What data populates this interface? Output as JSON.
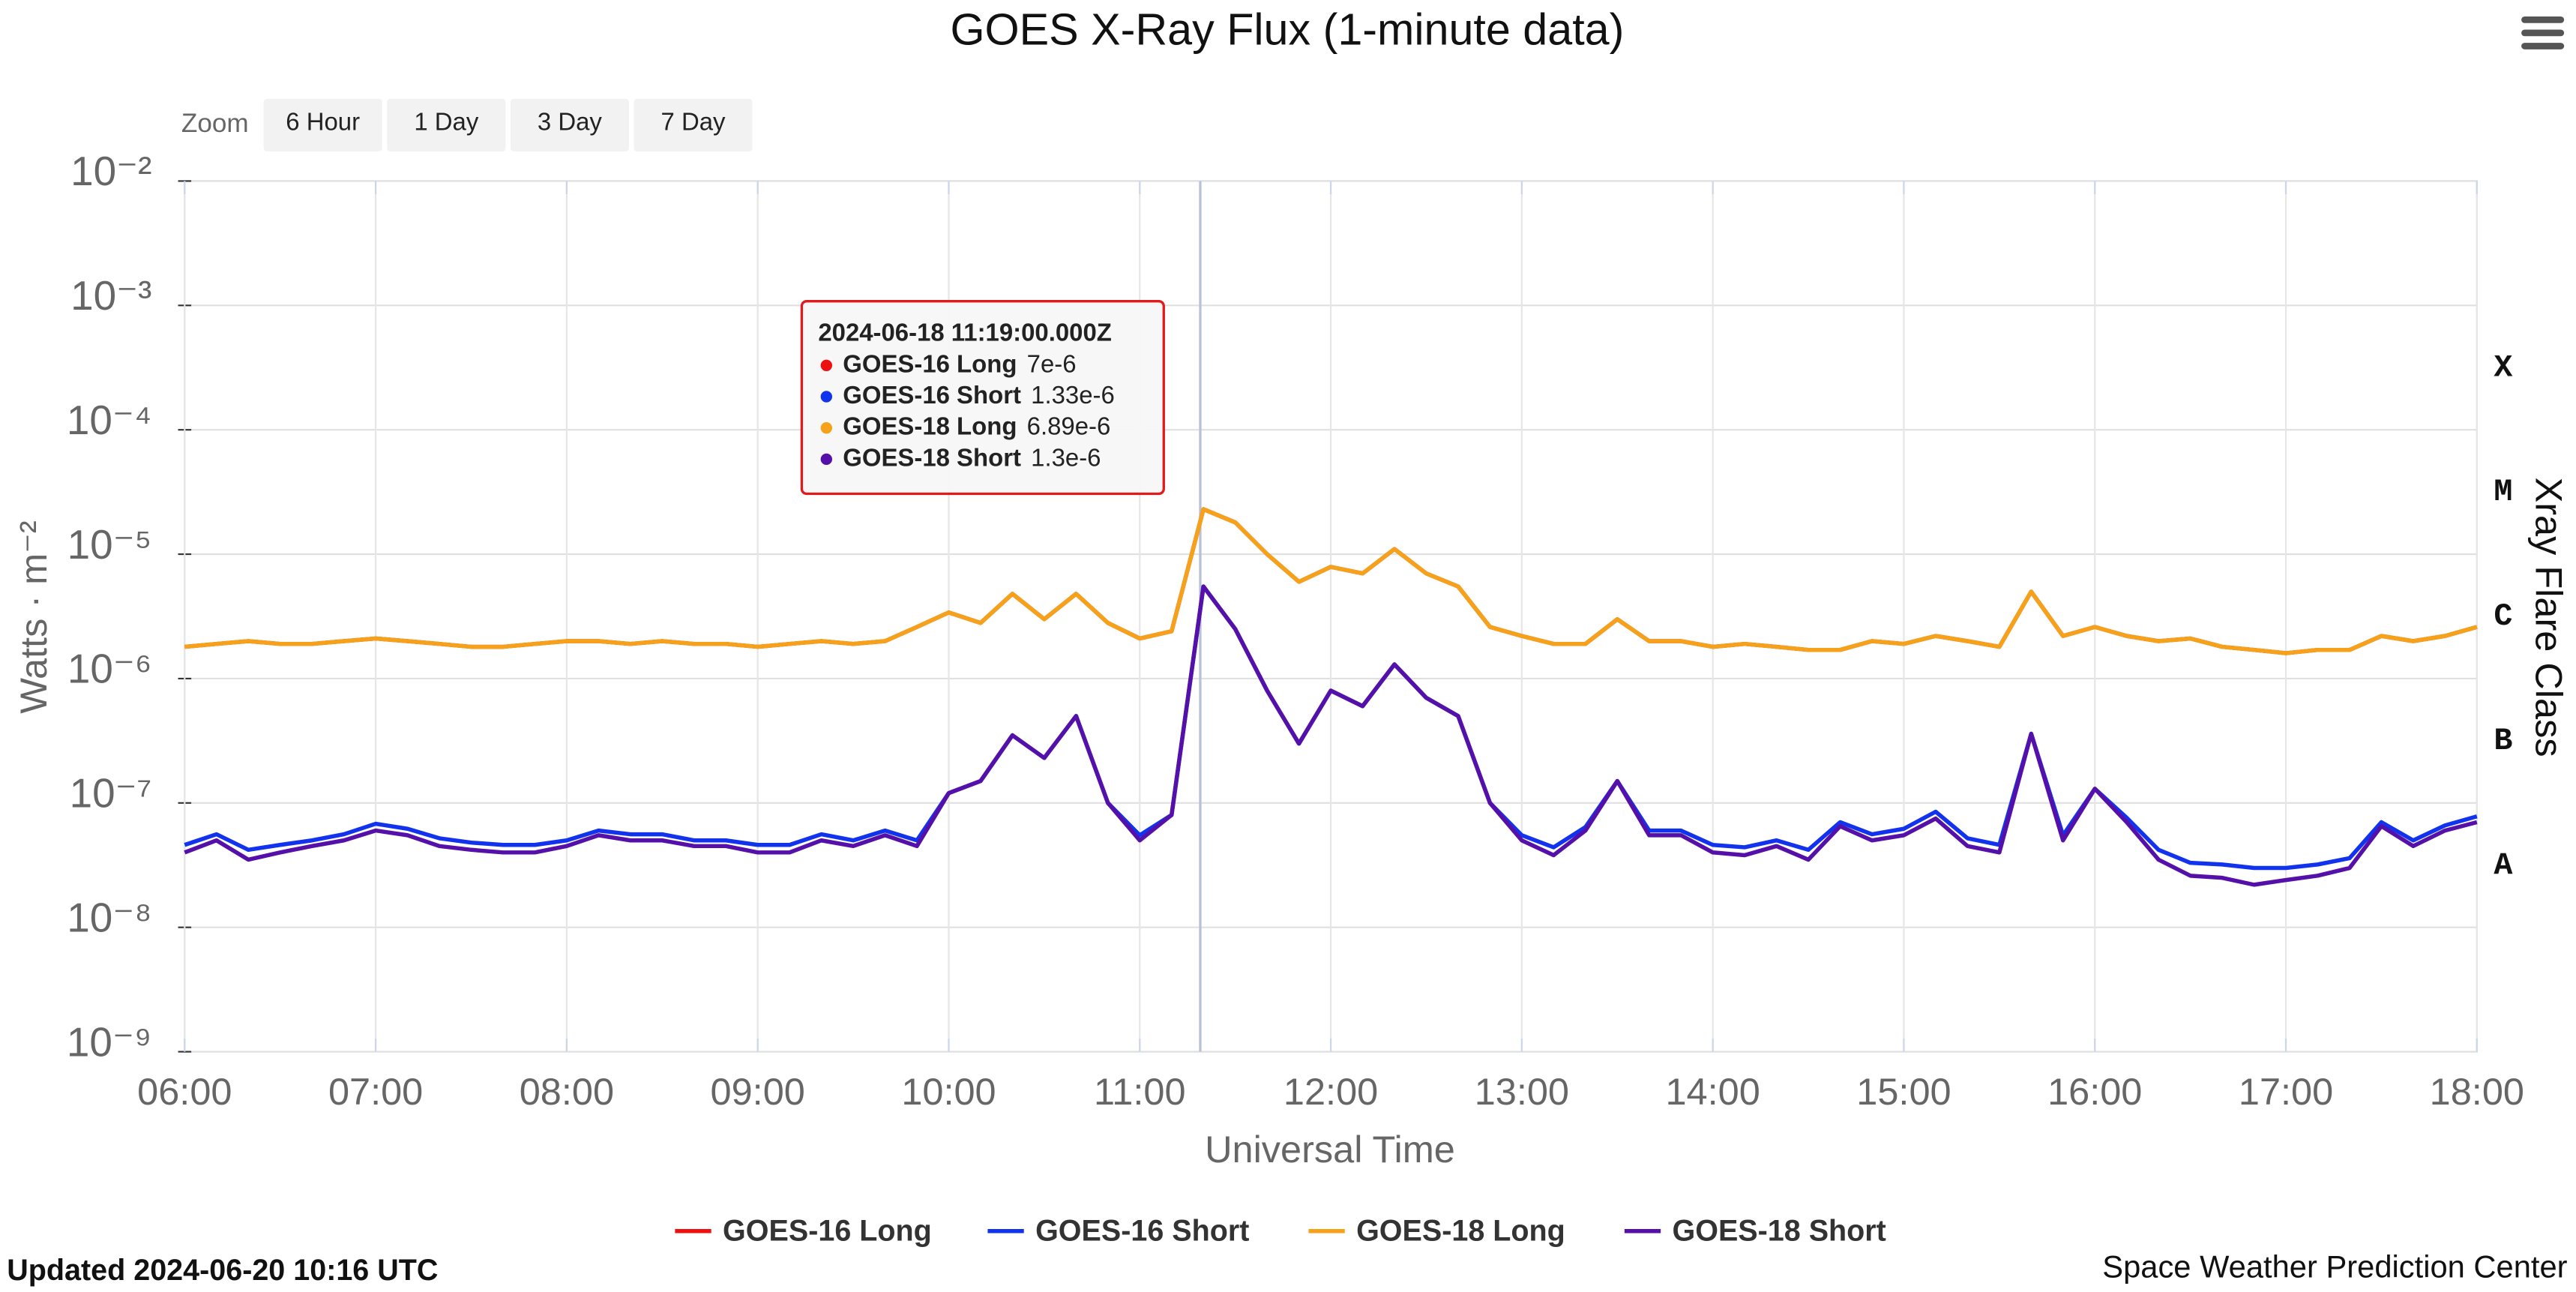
{
  "chart_data": {
    "type": "line",
    "title": "GOES X-Ray Flux (1-minute data)",
    "x_label": "Universal Time",
    "y_label": "Watts · m⁻²",
    "y2_label": "Xray Flare Class",
    "log_scale": true,
    "grid": true,
    "zoom": {
      "label": "Zoom",
      "buttons": [
        "6 Hour",
        "1 Day",
        "3 Day",
        "7 Day"
      ]
    },
    "updated": "Updated 2024-06-20 10:16 UTC",
    "credit": "Space Weather Prediction Center",
    "ylim": [
      1e-09,
      0.01
    ],
    "yticks": [
      {
        "value": 1e-09,
        "label": "10⁻⁹"
      },
      {
        "value": 1e-08,
        "label": "10⁻⁸"
      },
      {
        "value": 1e-07,
        "label": "10⁻⁷"
      },
      {
        "value": 1e-06,
        "label": "10⁻⁶"
      },
      {
        "value": 1e-05,
        "label": "10⁻⁵"
      },
      {
        "value": 0.0001,
        "label": "10⁻⁴"
      },
      {
        "value": 0.001,
        "label": "10⁻³"
      },
      {
        "value": 0.01,
        "label": "10⁻²"
      }
    ],
    "flare_classes": {
      "labels": [
        "A",
        "B",
        "C",
        "M",
        "X"
      ],
      "values": [
        1e-08,
        1e-07,
        1e-06,
        1e-05,
        0.0001
      ]
    },
    "xlim": [
      "06:00",
      "18:00"
    ],
    "xticks": [
      "06:00",
      "07:00",
      "08:00",
      "09:00",
      "10:00",
      "11:00",
      "12:00",
      "13:00",
      "14:00",
      "15:00",
      "16:00",
      "17:00",
      "18:00"
    ],
    "x": [
      "06:00",
      "06:10",
      "06:20",
      "06:30",
      "06:40",
      "06:50",
      "07:00",
      "07:10",
      "07:20",
      "07:30",
      "07:40",
      "07:50",
      "08:00",
      "08:10",
      "08:20",
      "08:30",
      "08:40",
      "08:50",
      "09:00",
      "09:10",
      "09:20",
      "09:30",
      "09:40",
      "09:50",
      "10:00",
      "10:10",
      "10:20",
      "10:30",
      "10:40",
      "10:50",
      "11:00",
      "11:10",
      "11:20",
      "11:30",
      "11:40",
      "11:50",
      "12:00",
      "12:10",
      "12:20",
      "12:30",
      "12:40",
      "12:50",
      "13:00",
      "13:10",
      "13:20",
      "13:30",
      "13:40",
      "13:50",
      "14:00",
      "14:10",
      "14:20",
      "14:30",
      "14:40",
      "14:50",
      "15:00",
      "15:10",
      "15:20",
      "15:30",
      "15:40",
      "15:50",
      "16:00",
      "16:10",
      "16:20",
      "16:30",
      "16:40",
      "16:50",
      "17:00",
      "17:10",
      "17:20",
      "17:30",
      "17:40",
      "17:50",
      "18:00"
    ],
    "series": [
      {
        "name": "GOES-16 Long",
        "color": "#ee1111",
        "values": [
          1.8e-06,
          1.9e-06,
          2e-06,
          1.9e-06,
          1.9e-06,
          2e-06,
          2.1e-06,
          2e-06,
          1.9e-06,
          1.8e-06,
          1.8e-06,
          1.9e-06,
          2e-06,
          2e-06,
          1.9e-06,
          2e-06,
          1.9e-06,
          1.9e-06,
          1.8e-06,
          1.9e-06,
          2e-06,
          1.9e-06,
          2e-06,
          2.6e-06,
          3.4e-06,
          2.8e-06,
          4.8e-06,
          3e-06,
          4.8e-06,
          2.8e-06,
          2.1e-06,
          2.4e-06,
          2.3e-05,
          1.8e-05,
          1e-05,
          6e-06,
          7.9e-06,
          7e-06,
          1.1e-05,
          7e-06,
          5.5e-06,
          2.6e-06,
          2.2e-06,
          1.9e-06,
          1.9e-06,
          3e-06,
          2e-06,
          2e-06,
          1.8e-06,
          1.9e-06,
          1.8e-06,
          1.7e-06,
          1.7e-06,
          2e-06,
          1.9e-06,
          2.2e-06,
          2e-06,
          1.8e-06,
          5e-06,
          2.2e-06,
          2.6e-06,
          2.2e-06,
          2e-06,
          2.1e-06,
          1.8e-06,
          1.7e-06,
          1.6e-06,
          1.7e-06,
          1.7e-06,
          2.2e-06,
          2e-06,
          2.2e-06,
          2.6e-06
        ]
      },
      {
        "name": "GOES-16 Short",
        "color": "#1133ee",
        "values": [
          4.6e-08,
          5.6e-08,
          4.2e-08,
          4.6e-08,
          5e-08,
          5.6e-08,
          6.8e-08,
          6.2e-08,
          5.2e-08,
          4.8e-08,
          4.6e-08,
          4.6e-08,
          5e-08,
          6e-08,
          5.6e-08,
          5.6e-08,
          5e-08,
          5e-08,
          4.6e-08,
          4.6e-08,
          5.6e-08,
          5e-08,
          6e-08,
          5e-08,
          1.2e-07,
          1.5e-07,
          3.5e-07,
          2.3e-07,
          5e-07,
          1e-07,
          5.5e-08,
          8e-08,
          5.5e-06,
          2.5e-06,
          8e-07,
          3e-07,
          8e-07,
          6e-07,
          1.3e-06,
          7e-07,
          5e-07,
          1e-07,
          5.5e-08,
          4.4e-08,
          6.4e-08,
          1.5e-07,
          6e-08,
          6e-08,
          4.6e-08,
          4.4e-08,
          5e-08,
          4.2e-08,
          7e-08,
          5.6e-08,
          6.2e-08,
          8.5e-08,
          5.2e-08,
          4.6e-08,
          3.6e-07,
          5.5e-08,
          1.3e-07,
          7.6e-08,
          4.2e-08,
          3.3e-08,
          3.2e-08,
          3e-08,
          3e-08,
          3.2e-08,
          3.6e-08,
          7e-08,
          5e-08,
          6.6e-08,
          7.8e-08
        ]
      },
      {
        "name": "GOES-18 Long",
        "color": "#f5a11a",
        "values": [
          1.8e-06,
          1.9e-06,
          2e-06,
          1.9e-06,
          1.9e-06,
          2e-06,
          2.1e-06,
          2e-06,
          1.9e-06,
          1.8e-06,
          1.8e-06,
          1.9e-06,
          2e-06,
          2e-06,
          1.9e-06,
          2e-06,
          1.9e-06,
          1.9e-06,
          1.8e-06,
          1.9e-06,
          2e-06,
          1.9e-06,
          2e-06,
          2.6e-06,
          3.4e-06,
          2.8e-06,
          4.8e-06,
          3e-06,
          4.8e-06,
          2.8e-06,
          2.1e-06,
          2.4e-06,
          2.3e-05,
          1.8e-05,
          1e-05,
          6e-06,
          7.9e-06,
          7e-06,
          1.1e-05,
          7e-06,
          5.5e-06,
          2.6e-06,
          2.2e-06,
          1.9e-06,
          1.9e-06,
          3e-06,
          2e-06,
          2e-06,
          1.8e-06,
          1.9e-06,
          1.8e-06,
          1.7e-06,
          1.7e-06,
          2e-06,
          1.9e-06,
          2.2e-06,
          2e-06,
          1.8e-06,
          5e-06,
          2.2e-06,
          2.6e-06,
          2.2e-06,
          2e-06,
          2.1e-06,
          1.8e-06,
          1.7e-06,
          1.6e-06,
          1.7e-06,
          1.7e-06,
          2.2e-06,
          2e-06,
          2.2e-06,
          2.6e-06
        ]
      },
      {
        "name": "GOES-18 Short",
        "color": "#5510aa",
        "values": [
          4e-08,
          5e-08,
          3.5e-08,
          4e-08,
          4.5e-08,
          5e-08,
          6e-08,
          5.5e-08,
          4.5e-08,
          4.2e-08,
          4e-08,
          4e-08,
          4.5e-08,
          5.5e-08,
          5e-08,
          5e-08,
          4.5e-08,
          4.5e-08,
          4e-08,
          4e-08,
          5e-08,
          4.5e-08,
          5.5e-08,
          4.5e-08,
          1.2e-07,
          1.5e-07,
          3.5e-07,
          2.3e-07,
          5e-07,
          1e-07,
          5e-08,
          8e-08,
          5.5e-06,
          2.5e-06,
          8e-07,
          3e-07,
          8e-07,
          6e-07,
          1.3e-06,
          7e-07,
          5e-07,
          1e-07,
          5e-08,
          3.8e-08,
          6e-08,
          1.5e-07,
          5.5e-08,
          5.5e-08,
          4e-08,
          3.8e-08,
          4.5e-08,
          3.5e-08,
          6.5e-08,
          5e-08,
          5.5e-08,
          7.5e-08,
          4.5e-08,
          4e-08,
          3.6e-07,
          5e-08,
          1.3e-07,
          7e-08,
          3.5e-08,
          2.6e-08,
          2.5e-08,
          2.2e-08,
          2.4e-08,
          2.6e-08,
          3e-08,
          6.5e-08,
          4.5e-08,
          6e-08,
          7e-08
        ]
      }
    ],
    "tooltip": {
      "x": "11:19",
      "label": "2024-06-18 11:19:00.000Z",
      "values": [
        7e-06,
        1.33e-06,
        6.89e-06,
        1.3e-06
      ],
      "value_labels": [
        "7e-6",
        "1.33e-6",
        "6.89e-6",
        "1.3e-6"
      ]
    }
  }
}
